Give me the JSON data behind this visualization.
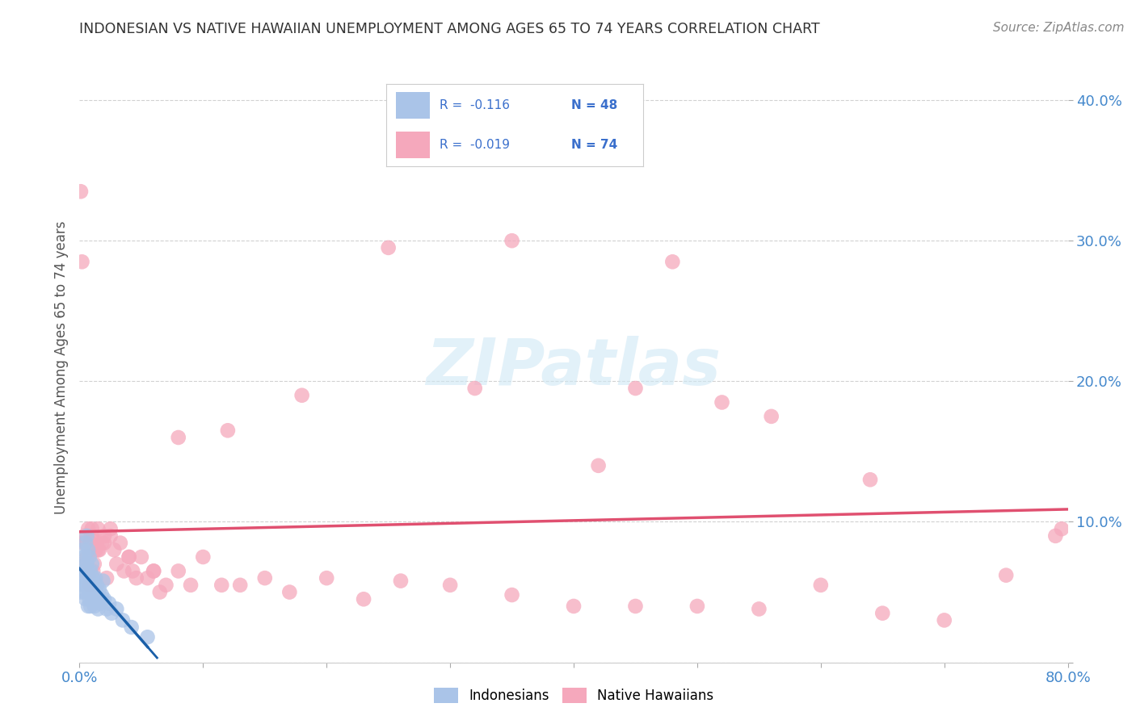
{
  "title": "INDONESIAN VS NATIVE HAWAIIAN UNEMPLOYMENT AMONG AGES 65 TO 74 YEARS CORRELATION CHART",
  "source": "Source: ZipAtlas.com",
  "ylabel": "Unemployment Among Ages 65 to 74 years",
  "xlim": [
    0.0,
    0.8
  ],
  "ylim": [
    0.0,
    0.42
  ],
  "xticks": [
    0.0,
    0.1,
    0.2,
    0.3,
    0.4,
    0.5,
    0.6,
    0.7,
    0.8
  ],
  "yticks": [
    0.0,
    0.1,
    0.2,
    0.3,
    0.4
  ],
  "indonesian_color": "#aac4e8",
  "native_hawaiian_color": "#f5a8bc",
  "trend_indonesian_color": "#1a5fa8",
  "trend_native_hawaiian_color": "#e05070",
  "watermark_color": "#d0e8f5",
  "legend_box_color": "#dddddd",
  "title_color": "#333333",
  "source_color": "#888888",
  "tick_color": "#4488cc",
  "ylabel_color": "#555555",
  "grid_color": "#cccccc",
  "indonesian_x": [
    0.001,
    0.002,
    0.002,
    0.003,
    0.003,
    0.003,
    0.004,
    0.004,
    0.004,
    0.005,
    0.005,
    0.005,
    0.006,
    0.006,
    0.006,
    0.007,
    0.007,
    0.007,
    0.007,
    0.008,
    0.008,
    0.008,
    0.009,
    0.009,
    0.009,
    0.01,
    0.01,
    0.011,
    0.011,
    0.012,
    0.012,
    0.013,
    0.013,
    0.014,
    0.015,
    0.015,
    0.016,
    0.017,
    0.018,
    0.019,
    0.02,
    0.022,
    0.024,
    0.026,
    0.03,
    0.035,
    0.042,
    0.055
  ],
  "indonesian_y": [
    0.05,
    0.07,
    0.06,
    0.08,
    0.065,
    0.055,
    0.075,
    0.06,
    0.05,
    0.085,
    0.065,
    0.045,
    0.09,
    0.07,
    0.055,
    0.08,
    0.065,
    0.055,
    0.04,
    0.075,
    0.06,
    0.045,
    0.065,
    0.05,
    0.04,
    0.07,
    0.055,
    0.06,
    0.045,
    0.055,
    0.04,
    0.06,
    0.048,
    0.055,
    0.048,
    0.038,
    0.052,
    0.042,
    0.048,
    0.058,
    0.045,
    0.038,
    0.042,
    0.035,
    0.038,
    0.03,
    0.025,
    0.018
  ],
  "native_hawaiian_x": [
    0.001,
    0.002,
    0.003,
    0.004,
    0.005,
    0.006,
    0.007,
    0.008,
    0.009,
    0.01,
    0.011,
    0.012,
    0.013,
    0.014,
    0.015,
    0.016,
    0.018,
    0.02,
    0.022,
    0.025,
    0.028,
    0.03,
    0.033,
    0.036,
    0.04,
    0.043,
    0.046,
    0.05,
    0.055,
    0.06,
    0.065,
    0.07,
    0.08,
    0.09,
    0.1,
    0.115,
    0.13,
    0.15,
    0.17,
    0.2,
    0.23,
    0.26,
    0.3,
    0.35,
    0.4,
    0.45,
    0.5,
    0.55,
    0.6,
    0.65,
    0.7,
    0.75,
    0.79,
    0.795,
    0.01,
    0.02,
    0.005,
    0.008,
    0.015,
    0.025,
    0.04,
    0.06,
    0.08,
    0.12,
    0.18,
    0.25,
    0.35,
    0.45,
    0.56,
    0.64,
    0.48,
    0.32,
    0.42,
    0.52
  ],
  "native_hawaiian_y": [
    0.335,
    0.285,
    0.085,
    0.09,
    0.085,
    0.075,
    0.095,
    0.08,
    0.085,
    0.09,
    0.065,
    0.07,
    0.08,
    0.085,
    0.095,
    0.08,
    0.085,
    0.085,
    0.06,
    0.095,
    0.08,
    0.07,
    0.085,
    0.065,
    0.075,
    0.065,
    0.06,
    0.075,
    0.06,
    0.065,
    0.05,
    0.055,
    0.065,
    0.055,
    0.075,
    0.055,
    0.055,
    0.06,
    0.05,
    0.06,
    0.045,
    0.058,
    0.055,
    0.048,
    0.04,
    0.04,
    0.04,
    0.038,
    0.055,
    0.035,
    0.03,
    0.062,
    0.09,
    0.095,
    0.095,
    0.09,
    0.07,
    0.055,
    0.08,
    0.09,
    0.075,
    0.065,
    0.16,
    0.165,
    0.19,
    0.295,
    0.3,
    0.195,
    0.175,
    0.13,
    0.285,
    0.195,
    0.14,
    0.185
  ]
}
